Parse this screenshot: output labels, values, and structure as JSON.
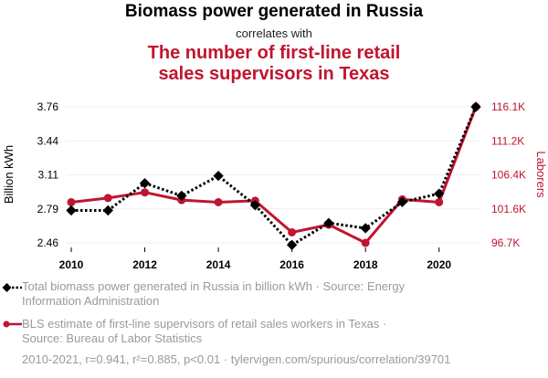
{
  "chart_data": {
    "type": "line",
    "title": "Biomass power generated in Russia",
    "subtitle": "correlates with",
    "title2_line1": "The number of first-line retail",
    "title2_line2": "sales supervisors in Texas",
    "x": [
      2010,
      2011,
      2012,
      2013,
      2014,
      2015,
      2016,
      2017,
      2018,
      2019,
      2020,
      2021
    ],
    "xlim": [
      2009.5,
      2021.5
    ],
    "x_ticks": [
      "2010",
      "2012",
      "2014",
      "2016",
      "2018",
      "2020"
    ],
    "series": [
      {
        "name": "Total biomass power generated in Russia in billion kWh",
        "axis": "left",
        "color": "#000000",
        "values": [
          2.77,
          2.77,
          3.03,
          2.91,
          3.1,
          2.82,
          2.44,
          2.65,
          2.6,
          2.85,
          2.93,
          3.76
        ]
      },
      {
        "name": "BLS estimate of first-line supervisors of retail sales workers in Texas",
        "axis": "right",
        "color": "#c0152f",
        "values": [
          102500,
          103100,
          103900,
          102800,
          102500,
          102700,
          98200,
          99300,
          96700,
          102900,
          102500,
          116100
        ]
      }
    ],
    "ylabel_left": "Billion kWh",
    "ylabel_right": "Laborers",
    "ylim_left": [
      2.46,
      3.76
    ],
    "ylim_right": [
      96700,
      116100
    ],
    "yticks_left": [
      "3.76",
      "3.44",
      "3.11",
      "2.79",
      "2.46"
    ],
    "yticks_right": [
      "116.1K",
      "111.2K",
      "106.4K",
      "101.6K",
      "96.7K"
    ],
    "legend": [
      {
        "line1": "Total biomass power generated in Russia in billion kWh · Source: Energy",
        "line2": "Information Administration"
      },
      {
        "line1": "BLS estimate of first-line supervisors of retail sales workers in Texas ·",
        "line2": "Source: Bureau of Labor Statistics"
      }
    ],
    "footer": "2010-2021, r=0.941, r²=0.885, p<0.01 · tylervigen.com/spurious/correlation/39701",
    "colors": {
      "left": "#000000",
      "right": "#c0152f"
    }
  }
}
